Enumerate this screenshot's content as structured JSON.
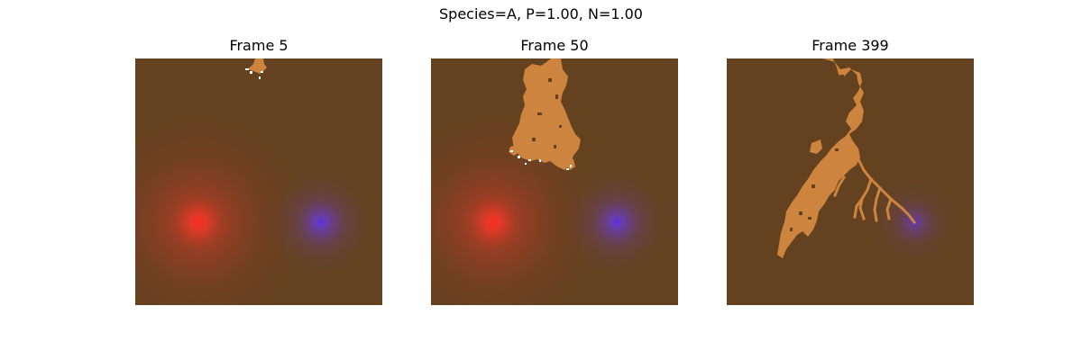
{
  "figure": {
    "title": "Species=A, P=1.00, N=1.00"
  },
  "colors": {
    "soil": "#64421f",
    "colony": "#cc843e",
    "red_source": "#ff2c24",
    "blue_source": "#5a32e6",
    "tip": "#ffffff"
  },
  "panels": [
    {
      "title": "Frame 5",
      "blue_intensity": "high"
    },
    {
      "title": "Frame 50",
      "blue_intensity": "high"
    },
    {
      "title": "Frame 399",
      "blue_intensity": "low"
    }
  ]
}
